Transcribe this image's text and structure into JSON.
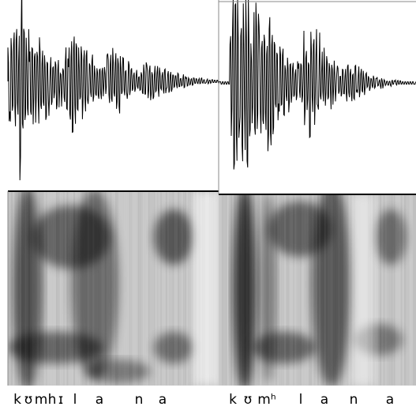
{
  "panels": [
    {
      "labels": [
        "k",
        "ʊ",
        "m",
        "h",
        "ɪ",
        "l",
        "a",
        "n",
        "a"
      ]
    },
    {
      "labels": [
        "k",
        "ʊ",
        "mʰ",
        "l",
        "a",
        "n",
        "a"
      ]
    }
  ]
}
